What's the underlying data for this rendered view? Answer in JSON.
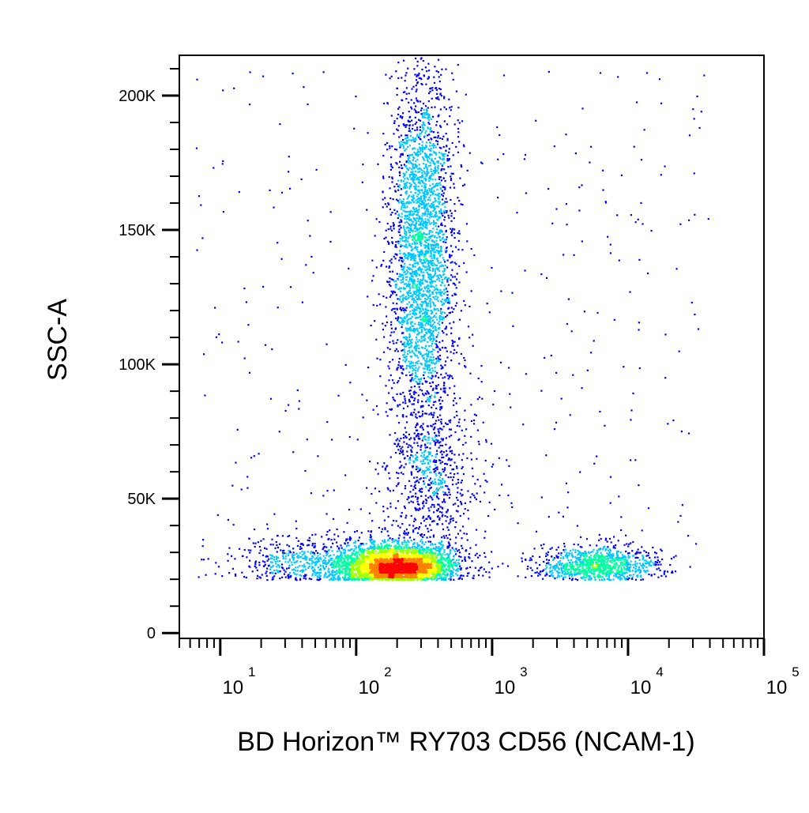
{
  "chart_data": {
    "type": "scatter",
    "subtype": "flow-cytometry-pseudocolor-density-dot-plot",
    "title": "",
    "xlabel": "BD Horizon™ RY703 CD56 (NCAM-1)",
    "ylabel": "SSC-A",
    "x_scale": "log",
    "y_scale": "linear",
    "xlim": [
      5,
      100000
    ],
    "ylim": [
      -2000,
      215000
    ],
    "y_ticks": [
      {
        "value": 0,
        "label": "0"
      },
      {
        "value": 50000,
        "label": "50K"
      },
      {
        "value": 100000,
        "label": "100K"
      },
      {
        "value": 150000,
        "label": "150K"
      },
      {
        "value": 200000,
        "label": "200K"
      }
    ],
    "x_ticks": [
      {
        "value": 10,
        "base": "10",
        "exp": "1"
      },
      {
        "value": 100,
        "base": "10",
        "exp": "2"
      },
      {
        "value": 1000,
        "base": "10",
        "exp": "3"
      },
      {
        "value": 10000,
        "base": "10",
        "exp": "4"
      },
      {
        "value": 100000,
        "base": "10",
        "exp": "5"
      }
    ],
    "grid": false,
    "legend": "none",
    "density_colormap": [
      "#0000ff",
      "#00c8ff",
      "#00ffa0",
      "#a0ff00",
      "#ffff00",
      "#ff8000",
      "#ff0000"
    ],
    "populations": [
      {
        "description": "CD56-negative granulocytes, high side scatter",
        "x_center": 300,
        "x_log_sd": 0.12,
        "y_center": 140000,
        "y_sd": 35000,
        "y_min": 60000,
        "y_max": 215000,
        "weight": 0.34
      },
      {
        "description": "CD56-negative lymphocytes, low side scatter",
        "x_center": 200,
        "x_log_sd": 0.22,
        "y_center": 24000,
        "y_sd": 4500,
        "y_min": 20000,
        "y_max": 45000,
        "weight": 0.36
      },
      {
        "description": "Low-intensity events",
        "x_center": 60,
        "x_log_sd": 0.35,
        "y_center": 25000,
        "y_sd": 6000,
        "y_min": 20000,
        "y_max": 55000,
        "weight": 0.08
      },
      {
        "description": "Transition events between populations",
        "x_center": 350,
        "x_log_sd": 0.18,
        "y_center": 55000,
        "y_sd": 15000,
        "y_min": 30000,
        "y_max": 90000,
        "weight": 0.07
      },
      {
        "description": "CD56-positive NK cells",
        "x_center": 6000,
        "x_log_sd": 0.22,
        "y_center": 25000,
        "y_sd": 4000,
        "y_min": 20000,
        "y_max": 40000,
        "weight": 0.11
      },
      {
        "description": "Sparse background events",
        "x_min_log": 0.8,
        "x_max_log": 4.6,
        "y_min": 20000,
        "y_max": 210000,
        "weight": 0.04
      }
    ],
    "event_count": 9000
  }
}
